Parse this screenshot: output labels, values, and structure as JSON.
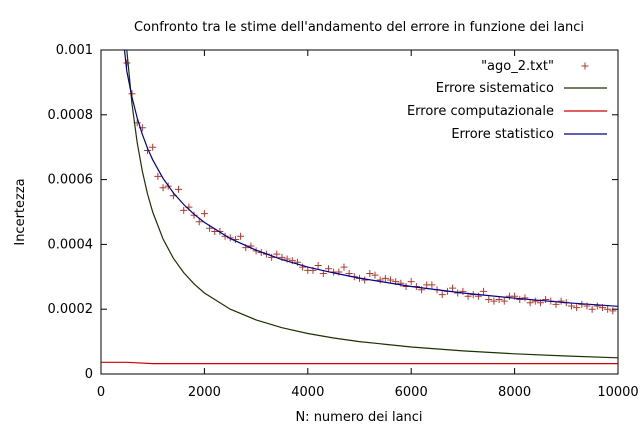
{
  "chart_data": {
    "type": "scatter",
    "title": "Confronto tra le stime dell'andamento del errore in funzione dei lanci",
    "xlabel": "N: numero dei lanci",
    "ylabel": "Incertezza",
    "xlim": [
      0,
      10000
    ],
    "ylim": [
      0,
      0.001
    ],
    "x_ticks": [
      0,
      2000,
      4000,
      6000,
      8000,
      10000
    ],
    "x_tick_labels": [
      "0",
      "2000",
      "4000",
      "6000",
      "8000",
      "10000"
    ],
    "y_ticks": [
      0,
      0.0002,
      0.0004,
      0.0006,
      0.0008,
      0.001
    ],
    "y_tick_labels": [
      "0",
      "0.0002",
      "0.0004",
      "0.0006",
      "0.0008",
      "0.001"
    ],
    "grid": false,
    "legend_position": "top-right",
    "series": [
      {
        "name": "\"ago_2.txt\"",
        "kind": "points",
        "marker": "+",
        "color": "#b03a2e",
        "x": [
          500,
          600,
          700,
          800,
          900,
          1000,
          1100,
          1200,
          1300,
          1400,
          1500,
          1600,
          1700,
          1800,
          1900,
          2000,
          2100,
          2200,
          2300,
          2400,
          2500,
          2600,
          2700,
          2800,
          2900,
          3000,
          3100,
          3200,
          3300,
          3400,
          3500,
          3600,
          3700,
          3800,
          3900,
          4000,
          4100,
          4200,
          4300,
          4400,
          4500,
          4600,
          4700,
          4800,
          4900,
          5000,
          5100,
          5200,
          5300,
          5400,
          5500,
          5600,
          5700,
          5800,
          5900,
          6000,
          6100,
          6200,
          6300,
          6400,
          6500,
          6600,
          6700,
          6800,
          6900,
          7000,
          7100,
          7200,
          7300,
          7400,
          7500,
          7600,
          7700,
          7800,
          7900,
          8000,
          8100,
          8200,
          8300,
          8400,
          8500,
          8600,
          8700,
          8800,
          8900,
          9000,
          9100,
          9200,
          9300,
          9400,
          9500,
          9600,
          9700,
          9800,
          9900
        ],
        "y": [
          0.00096,
          0.000865,
          0.000775,
          0.00076,
          0.00069,
          0.0007,
          0.00061,
          0.000575,
          0.00058,
          0.00055,
          0.00057,
          0.000505,
          0.000515,
          0.00049,
          0.00047,
          0.000495,
          0.00045,
          0.00044,
          0.00044,
          0.000425,
          0.00042,
          0.000415,
          0.000425,
          0.00039,
          0.000395,
          0.00038,
          0.000375,
          0.00037,
          0.00036,
          0.00037,
          0.00036,
          0.000355,
          0.00035,
          0.000345,
          0.00033,
          0.00032,
          0.00032,
          0.000335,
          0.00031,
          0.000325,
          0.000315,
          0.000315,
          0.00033,
          0.00031,
          0.0003,
          0.000295,
          0.00029,
          0.00031,
          0.000305,
          0.00029,
          0.000295,
          0.00029,
          0.000285,
          0.00028,
          0.00027,
          0.000285,
          0.00027,
          0.00026,
          0.000275,
          0.000275,
          0.00026,
          0.000245,
          0.000255,
          0.000265,
          0.00025,
          0.000255,
          0.00024,
          0.000245,
          0.00024,
          0.000255,
          0.00023,
          0.000225,
          0.00023,
          0.000225,
          0.00024,
          0.00024,
          0.00023,
          0.000235,
          0.00022,
          0.000225,
          0.00022,
          0.00023,
          0.000225,
          0.000215,
          0.000225,
          0.00022,
          0.00021,
          0.000205,
          0.000215,
          0.00021,
          0.0002,
          0.00021,
          0.000205,
          0.0002,
          0.000195
        ]
      },
      {
        "name": "Errore sistematico",
        "kind": "line",
        "color": "#1a3300",
        "formula_note": "",
        "x": [
          400,
          500,
          600,
          700,
          800,
          900,
          1000,
          1200,
          1400,
          1600,
          1800,
          2000,
          2500,
          3000,
          3500,
          4000,
          4500,
          5000,
          6000,
          7000,
          8000,
          9000,
          10000
        ],
        "y": [
          0.00125,
          0.001,
          0.000833,
          0.000714,
          0.000625,
          0.000556,
          0.0005,
          0.000417,
          0.000357,
          0.000313,
          0.000278,
          0.00025,
          0.0002,
          0.000167,
          0.000143,
          0.000125,
          0.000111,
          0.0001,
          8.33e-05,
          7.14e-05,
          6.25e-05,
          5.56e-05,
          5e-05
        ]
      },
      {
        "name": "Errore computazionale",
        "kind": "line",
        "color": "#cc0000",
        "x": [
          0,
          500,
          1000,
          2000,
          4000,
          6000,
          8000,
          10000
        ],
        "y": [
          3.6e-05,
          3.6e-05,
          3.2e-05,
          3.2e-05,
          3.2e-05,
          3.2e-05,
          3.2e-05,
          3.2e-05
        ]
      },
      {
        "name": "Errore statistico",
        "kind": "line",
        "color": "#00008b",
        "x": [
          400,
          500,
          600,
          700,
          800,
          900,
          1000,
          1200,
          1400,
          1600,
          1800,
          2000,
          2500,
          3000,
          3500,
          4000,
          4500,
          5000,
          6000,
          7000,
          8000,
          9000,
          10000
        ],
        "y": [
          0.00108,
          0.000935,
          0.000854,
          0.00079,
          0.000739,
          0.000697,
          0.000661,
          0.000604,
          0.000559,
          0.000523,
          0.000493,
          0.000468,
          0.000418,
          0.000382,
          0.000353,
          0.00033,
          0.000312,
          0.000296,
          0.00027,
          0.00025,
          0.000234,
          0.00022,
          0.000209
        ]
      }
    ]
  }
}
